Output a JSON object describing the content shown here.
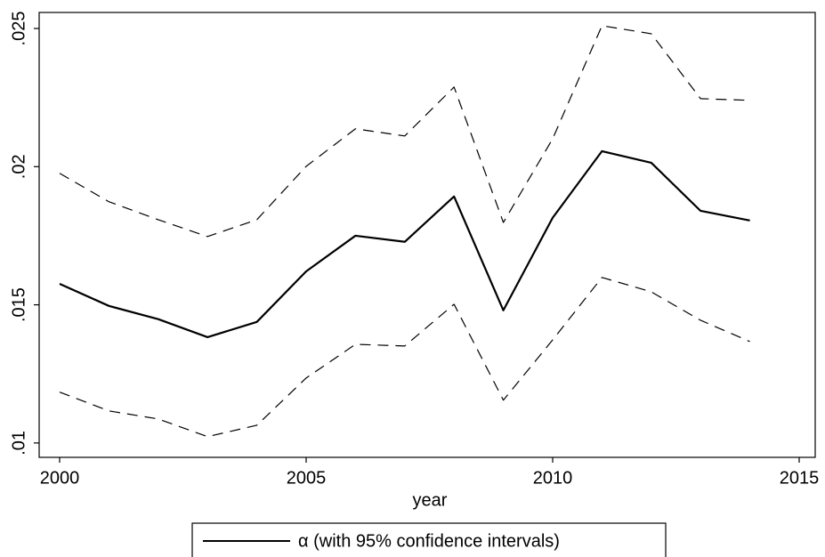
{
  "chart_data": {
    "type": "line",
    "x_label": "year",
    "x": [
      2000,
      2001,
      2002,
      2003,
      2004,
      2005,
      2006,
      2007,
      2008,
      2009,
      2010,
      2011,
      2012,
      2013,
      2014
    ],
    "series": [
      {
        "name": "α (with 95% confidence intervals)",
        "color": "#000000",
        "values": [
          0.01576,
          0.01496,
          0.01448,
          0.01383,
          0.01438,
          0.01621,
          0.0175,
          0.01728,
          0.01892,
          0.0148,
          0.01815,
          0.02056,
          0.02014,
          0.0184,
          0.01805
        ],
        "upper": [
          0.01976,
          0.01873,
          0.01808,
          0.01747,
          0.01808,
          0.02001,
          0.02137,
          0.02111,
          0.02288,
          0.01798,
          0.02101,
          0.0251,
          0.02481,
          0.02246,
          0.0224
        ],
        "lower": [
          0.01184,
          0.01116,
          0.01087,
          0.01023,
          0.01064,
          0.01235,
          0.01357,
          0.01351,
          0.01502,
          0.01155,
          0.01373,
          0.01599,
          0.01547,
          0.01444,
          0.01367
        ]
      }
    ],
    "xlim": [
      1999.585,
      2015.325
    ],
    "xticks": [
      2000,
      2005,
      2010,
      2015
    ],
    "ylim": [
      0.00948,
      0.02558
    ],
    "yticks": [
      {
        "value": 0.01,
        "label": ".01"
      },
      {
        "value": 0.015,
        "label": ".015"
      },
      {
        "value": 0.02,
        "label": ".02"
      },
      {
        "value": 0.025,
        "label": ".025"
      }
    ],
    "grid": false
  }
}
